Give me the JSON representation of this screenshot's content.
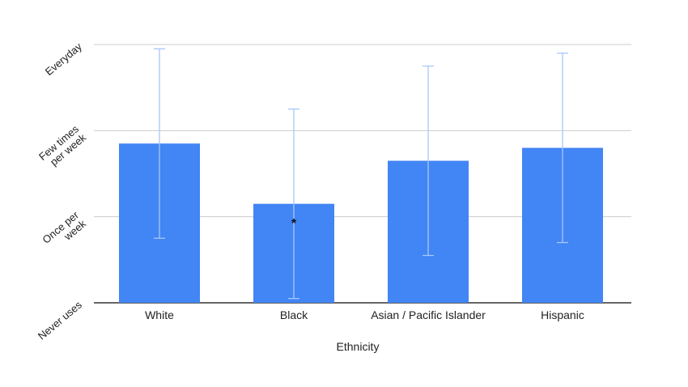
{
  "chart_data": {
    "type": "bar",
    "categories": [
      "White",
      "Black",
      "Asian / Pacific Islander",
      "Hispanic"
    ],
    "values": [
      1.85,
      1.15,
      1.65,
      1.8
    ],
    "error_bars": {
      "low": [
        0.75,
        0.05,
        0.55,
        0.7
      ],
      "high": [
        2.95,
        2.25,
        2.75,
        2.9
      ]
    },
    "ylim": [
      0,
      3
    ],
    "yticks": [
      {
        "value": 0,
        "label": "Never uses"
      },
      {
        "value": 1,
        "label": "Once per week"
      },
      {
        "value": 2,
        "label": "Few times per week"
      },
      {
        "value": 3,
        "label": "Everyday"
      }
    ],
    "xlabel": "Ethnicity",
    "ylabel": "",
    "grid": true,
    "annotations": [
      {
        "category": "Black",
        "text": "*",
        "value": 0.95
      }
    ],
    "colors": {
      "bar": "#4285f4",
      "error_bar": "#a8c7fa",
      "grid": "#cccccc",
      "axis": "#333333"
    }
  }
}
